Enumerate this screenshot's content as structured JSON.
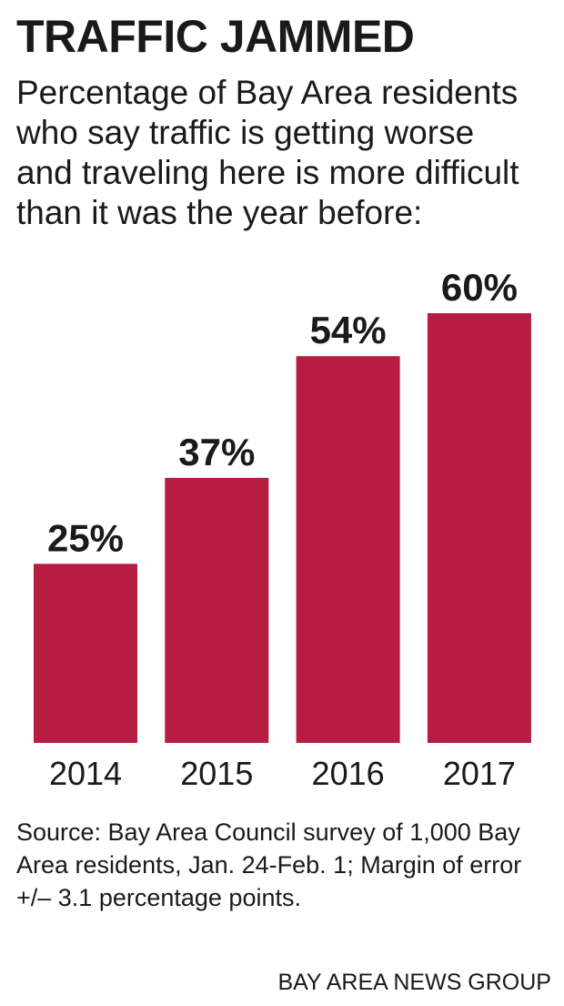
{
  "header": {
    "title": "TRAFFIC JAMMED",
    "subtitle": "Percentage of Bay Area residents who say traffic is getting worse and traveling here is more difficult than it was the year before:"
  },
  "chart_data": {
    "type": "bar",
    "categories": [
      "2014",
      "2015",
      "2016",
      "2017"
    ],
    "values": [
      25,
      37,
      54,
      60
    ],
    "value_labels": [
      "25%",
      "37%",
      "54%",
      "60%"
    ],
    "title": "TRAFFIC JAMMED",
    "xlabel": "",
    "ylabel": "",
    "ylim": [
      0,
      60
    ],
    "grid": false,
    "legend": "none",
    "bar_color": "#b71c42"
  },
  "footer": {
    "source": "Source: Bay Area Council survey of 1,000 Bay Area residents, Jan. 24-Feb. 1; Margin of error +/– 3.1 percentage points.",
    "credit": "BAY AREA NEWS GROUP"
  },
  "colors": {
    "bar": "#b71c42",
    "text": "#1a1a1a",
    "background": "#ffffff"
  }
}
